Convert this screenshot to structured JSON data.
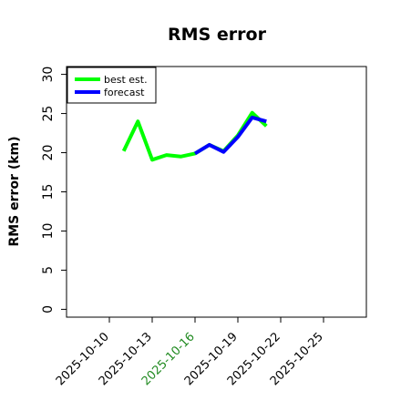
{
  "chart_data": {
    "type": "line",
    "title": "RMS error",
    "xlabel": "",
    "ylabel": "RMS error (km)",
    "x_is_date": true,
    "xlim": [
      "2025-10-07",
      "2025-10-28"
    ],
    "ylim": [
      -1,
      31
    ],
    "yticks": [
      0,
      5,
      10,
      15,
      20,
      25,
      30
    ],
    "xticks": [
      {
        "label": "2025-10-10",
        "color": "#000000"
      },
      {
        "label": "2025-10-13",
        "color": "#000000"
      },
      {
        "label": "2025-10-16",
        "color": "#228B22"
      },
      {
        "label": "2025-10-19",
        "color": "#000000"
      },
      {
        "label": "2025-10-22",
        "color": "#000000"
      },
      {
        "label": "2025-10-25",
        "color": "#000000"
      }
    ],
    "grid": false,
    "legend_position": "upper-left",
    "series": [
      {
        "name": "best est.",
        "color": "#00ff00",
        "points": [
          [
            "2025-10-11",
            20.2
          ],
          [
            "2025-10-12",
            24.0
          ],
          [
            "2025-10-13",
            19.1
          ],
          [
            "2025-10-14",
            19.7
          ],
          [
            "2025-10-15",
            19.5
          ],
          [
            "2025-10-16",
            19.9
          ],
          [
            "2025-10-17",
            21.0
          ],
          [
            "2025-10-18",
            20.2
          ],
          [
            "2025-10-19",
            22.2
          ],
          [
            "2025-10-20",
            25.1
          ],
          [
            "2025-10-21",
            23.4
          ]
        ]
      },
      {
        "name": "forecast",
        "color": "#0000ff",
        "points": [
          [
            "2025-10-16",
            19.9
          ],
          [
            "2025-10-17",
            21.0
          ],
          [
            "2025-10-18",
            20.1
          ],
          [
            "2025-10-19",
            22.0
          ],
          [
            "2025-10-20",
            24.5
          ],
          [
            "2025-10-21",
            24.0
          ]
        ]
      }
    ]
  }
}
